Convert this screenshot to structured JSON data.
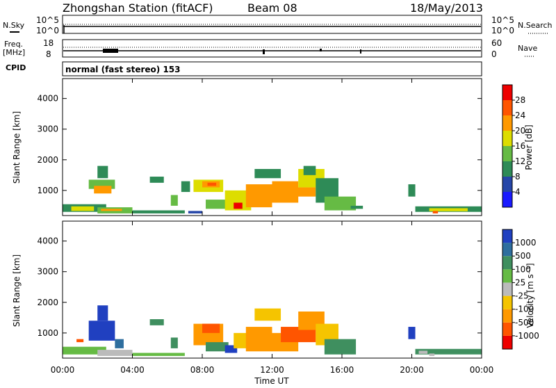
{
  "header": {
    "station": "Zhongshan Station (fitACF)",
    "beam": "Beam 08",
    "date": "18/May/2013"
  },
  "strips": {
    "nsky": {
      "left_label": "N.Sky",
      "left_ticks": [
        "10^5",
        "10^0"
      ],
      "right_label": "N.Search",
      "right_ticks": [
        "10^5",
        "10^0"
      ]
    },
    "freq": {
      "left_label_1": "Freq.",
      "left_label_2": "[MHz]",
      "left_ticks": [
        "18",
        "8"
      ],
      "right_label": "Nave",
      "right_ticks": [
        "60",
        "0"
      ]
    },
    "cpid": {
      "label": "CPID",
      "mode": "normal (fast stereo) 153"
    }
  },
  "x_axis": {
    "label": "Time UT",
    "ticks": [
      "00:00",
      "04:00",
      "08:00",
      "12:00",
      "16:00",
      "20:00",
      "00:00"
    ],
    "range_hours": [
      0,
      24
    ]
  },
  "colors": {
    "power_scale": [
      "#1a1aff",
      "#2646a8",
      "#2e8b57",
      "#66bb44",
      "#dddd00",
      "#ff9900",
      "#ff5500",
      "#ee0000"
    ],
    "velocity_scale": [
      "#ee0000",
      "#ff5500",
      "#ff9900",
      "#f5c400",
      "#bbbbbb",
      "#66bb44",
      "#3f8f5f",
      "#2e6e9e",
      "#2040c0"
    ]
  },
  "chart_data": [
    {
      "type": "heatmap",
      "panel": "power",
      "ylabel": "Slant Range [km]",
      "yticks": [
        1000,
        2000,
        3000,
        4000
      ],
      "ylim": [
        180,
        4650
      ],
      "colorbar": {
        "label": "Power [dB]",
        "ticks": [
          "4",
          "8",
          "12",
          "16",
          "20",
          "24",
          "28"
        ],
        "range": [
          0,
          32
        ]
      },
      "cells": [
        [
          0.0,
          2.5,
          300,
          550,
          10
        ],
        [
          0.5,
          1.8,
          330,
          480,
          18
        ],
        [
          2.0,
          4.0,
          250,
          450,
          14
        ],
        [
          2.2,
          3.4,
          330,
          400,
          22
        ],
        [
          1.5,
          3.0,
          1050,
          1350,
          14
        ],
        [
          1.8,
          2.8,
          900,
          1150,
          20
        ],
        [
          2.0,
          2.6,
          1400,
          1800,
          8
        ],
        [
          4.0,
          7.0,
          250,
          350,
          10
        ],
        [
          5.0,
          5.8,
          1250,
          1450,
          10
        ],
        [
          6.2,
          6.6,
          500,
          850,
          12
        ],
        [
          6.8,
          7.3,
          950,
          1300,
          8
        ],
        [
          7.2,
          8.0,
          250,
          330,
          6
        ],
        [
          7.5,
          9.2,
          950,
          1350,
          16
        ],
        [
          8.0,
          9.0,
          1100,
          1300,
          22
        ],
        [
          8.3,
          8.8,
          1150,
          1250,
          26
        ],
        [
          8.2,
          9.5,
          400,
          700,
          12
        ],
        [
          9.3,
          10.8,
          350,
          1000,
          18
        ],
        [
          9.8,
          10.3,
          400,
          600,
          28
        ],
        [
          10.5,
          12.0,
          450,
          1200,
          20
        ],
        [
          11.0,
          12.5,
          1400,
          1700,
          8
        ],
        [
          12.0,
          13.5,
          600,
          1300,
          22
        ],
        [
          12.5,
          14.5,
          800,
          1100,
          20
        ],
        [
          13.5,
          15.0,
          1100,
          1700,
          18
        ],
        [
          13.8,
          14.5,
          1500,
          1800,
          10
        ],
        [
          14.5,
          15.8,
          600,
          1400,
          8
        ],
        [
          15.0,
          16.8,
          350,
          800,
          12
        ],
        [
          16.5,
          17.2,
          400,
          500,
          8
        ],
        [
          19.8,
          20.2,
          800,
          1200,
          8
        ],
        [
          20.2,
          24.0,
          300,
          480,
          10
        ],
        [
          21.0,
          23.2,
          320,
          420,
          16
        ],
        [
          21.2,
          21.5,
          250,
          330,
          26
        ]
      ]
    },
    {
      "type": "heatmap",
      "panel": "velocity",
      "ylabel": "Slant Range [km]",
      "yticks": [
        1000,
        2000,
        3000,
        4000
      ],
      "ylim": [
        180,
        4650
      ],
      "colorbar": {
        "label": "Velocity [m s⁻¹]",
        "ticks": [
          "-1000",
          "-500",
          "-100",
          "-25",
          "25",
          "100",
          "500",
          "1000"
        ]
      },
      "cells": [
        [
          0.0,
          2.5,
          300,
          550,
          5
        ],
        [
          2.0,
          4.0,
          250,
          450,
          4
        ],
        [
          0.8,
          1.2,
          700,
          800,
          1
        ],
        [
          1.5,
          3.0,
          750,
          1400,
          8
        ],
        [
          2.0,
          2.6,
          1400,
          1900,
          8
        ],
        [
          3.0,
          3.5,
          500,
          800,
          7
        ],
        [
          4.0,
          7.0,
          250,
          350,
          5
        ],
        [
          5.0,
          5.8,
          1250,
          1450,
          6
        ],
        [
          6.2,
          6.6,
          500,
          850,
          6
        ],
        [
          7.5,
          9.2,
          600,
          1300,
          2
        ],
        [
          8.0,
          9.0,
          1000,
          1300,
          1
        ],
        [
          8.2,
          9.5,
          400,
          700,
          6
        ],
        [
          9.3,
          10.0,
          350,
          600,
          8
        ],
        [
          9.8,
          10.8,
          500,
          1000,
          3
        ],
        [
          10.5,
          12.0,
          400,
          1200,
          2
        ],
        [
          11.0,
          12.5,
          1400,
          1800,
          3
        ],
        [
          12.0,
          13.5,
          400,
          1000,
          2
        ],
        [
          12.5,
          14.5,
          700,
          1200,
          1
        ],
        [
          13.5,
          15.0,
          1100,
          1700,
          2
        ],
        [
          14.5,
          15.8,
          600,
          1300,
          3
        ],
        [
          15.0,
          16.8,
          300,
          800,
          6
        ],
        [
          19.8,
          20.2,
          800,
          1200,
          8
        ],
        [
          20.2,
          24.0,
          300,
          480,
          6
        ],
        [
          20.4,
          20.9,
          320,
          420,
          4
        ],
        [
          21.0,
          21.3,
          250,
          330,
          4
        ]
      ]
    }
  ]
}
